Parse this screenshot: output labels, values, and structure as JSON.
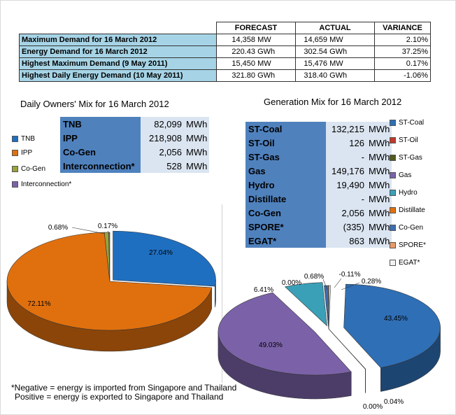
{
  "summary": {
    "headers": [
      "FORECAST",
      "ACTUAL",
      "VARIANCE"
    ],
    "rows": [
      {
        "label": "Maximum Demand for 16 March 2012",
        "forecast_val": "14,358",
        "forecast_unit": "MW",
        "actual_val": "14,659",
        "actual_unit": "MW",
        "variance": "2.10%"
      },
      {
        "label": "Energy Demand for 16 March 2012",
        "forecast_val": "220.43",
        "forecast_unit": "GWh",
        "actual_val": "302.54",
        "actual_unit": "GWh",
        "variance": "37.25%"
      },
      {
        "label": "Highest Maximum Demand (9 May 2011)",
        "forecast_val": "15,450",
        "forecast_unit": "MW",
        "actual_val": "15,476",
        "actual_unit": "MW",
        "variance": "0.17%"
      },
      {
        "label": "Highest Daily Energy Demand (10 May 2011)",
        "forecast_val": "321.80",
        "forecast_unit": "GWh",
        "actual_val": "318.40",
        "actual_unit": "GWh",
        "variance": "-1.06%"
      }
    ]
  },
  "owners": {
    "title": "Daily Owners' Mix for 16 March 2012",
    "table": [
      {
        "name": "TNB",
        "value": "82,099",
        "unit": "MWh"
      },
      {
        "name": "IPP",
        "value": "218,908",
        "unit": "MWh"
      },
      {
        "name": "Co-Gen",
        "value": "2,056",
        "unit": "MWh"
      },
      {
        "name": "Interconnection*",
        "value": "528",
        "unit": "MWh"
      }
    ],
    "legend": [
      "TNB",
      "IPP",
      "Co-Gen",
      "Interconnection*"
    ]
  },
  "generation": {
    "title": "Generation Mix for 16 March 2012",
    "table": [
      {
        "name": "ST-Coal",
        "value": "132,215",
        "unit": "MWh"
      },
      {
        "name": "ST-Oil",
        "value": "126",
        "unit": "MWh"
      },
      {
        "name": "ST-Gas",
        "value": "-",
        "unit": "MWh"
      },
      {
        "name": "Gas",
        "value": "149,176",
        "unit": "MWh"
      },
      {
        "name": "Hydro",
        "value": "19,490",
        "unit": "MWh"
      },
      {
        "name": "Distillate",
        "value": "-",
        "unit": "MWh"
      },
      {
        "name": "Co-Gen",
        "value": "2,056",
        "unit": "MWh"
      },
      {
        "name": "SPORE*",
        "value": "(335)",
        "unit": "MWh"
      },
      {
        "name": "EGAT*",
        "value": "863",
        "unit": "MWh"
      }
    ],
    "legend": [
      "ST-Coal",
      "ST-Oil",
      "ST-Gas",
      "Gas",
      "Hydro",
      "Distillate",
      "Co-Gen",
      "SPORE*",
      "EGAT*"
    ]
  },
  "note": {
    "line1": "*Negative = energy is imported from Singapore and Thailand",
    "line2": "Positive = energy is exported to Singapore and Thailand"
  },
  "colors": {
    "blue": "#1f6fc0",
    "orange": "#e0700e",
    "olive": "#9aa33a",
    "purple": "#7b62a8",
    "teal": "#3aa0b8",
    "coal": "#2f6fb6",
    "cogen_olive": "#4f5a1e"
  },
  "chart_data": [
    {
      "type": "pie",
      "title": "Daily Owners' Mix for 16 March 2012",
      "categories": [
        "TNB",
        "IPP",
        "Co-Gen",
        "Interconnection*"
      ],
      "values": [
        27.04,
        72.11,
        0.68,
        0.17
      ],
      "labels": [
        "27.04%",
        "72.11%",
        "0.68%",
        "0.17%"
      ],
      "colors": [
        "#1f6fc0",
        "#e0700e",
        "#9aa33a",
        "#7b62a8"
      ],
      "legend_position": "left"
    },
    {
      "type": "pie",
      "title": "Generation Mix for 16 March 2012",
      "categories": [
        "ST-Coal",
        "ST-Oil",
        "ST-Gas",
        "Gas",
        "Hydro",
        "Distillate",
        "Co-Gen",
        "SPORE*",
        "EGAT*"
      ],
      "values": [
        43.45,
        0.04,
        0.0,
        49.03,
        6.41,
        0.0,
        0.68,
        -0.11,
        0.28
      ],
      "labels": [
        "43.45%",
        "0.04%",
        "0.00%",
        "49.03%",
        "6.41%",
        "0.00%",
        "0.68%",
        "-0.11%",
        "0.28%"
      ],
      "colors": [
        "#2f6fb6",
        "#c0392b",
        "#4f5a1e",
        "#7b62a8",
        "#3aa0b8",
        "#e0700e",
        "#3d6fb0",
        "#e89a6a",
        "#f2f2f2"
      ],
      "legend_position": "right"
    }
  ]
}
